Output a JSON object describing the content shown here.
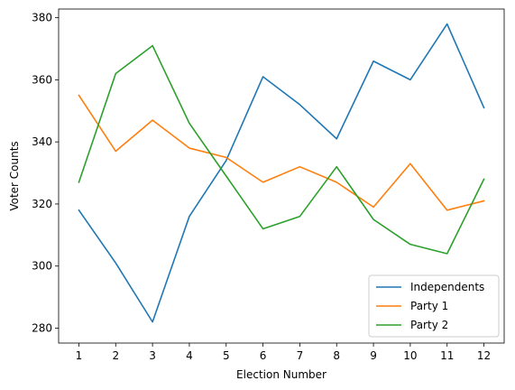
{
  "chart_data": {
    "type": "line",
    "xlabel": "Election Number",
    "ylabel": "Voter Counts",
    "x": [
      1,
      2,
      3,
      4,
      5,
      6,
      7,
      8,
      9,
      10,
      11,
      12
    ],
    "xticks": [
      "1",
      "2",
      "3",
      "4",
      "5",
      "6",
      "7",
      "8",
      "9",
      "10",
      "11",
      "12"
    ],
    "yticks": [
      280,
      300,
      320,
      340,
      360,
      380
    ],
    "xlim": [
      0.45,
      12.55
    ],
    "ylim": [
      275.2,
      382.8
    ],
    "grid": false,
    "legend_position": "lower right",
    "series": [
      {
        "name": "Independents",
        "color": "#1f77b4",
        "values": [
          318,
          301,
          282,
          316,
          334,
          361,
          352,
          341,
          366,
          360,
          378,
          351
        ]
      },
      {
        "name": "Party 1",
        "color": "#ff7f0e",
        "values": [
          355,
          337,
          347,
          338,
          335,
          327,
          332,
          327,
          319,
          333,
          318,
          321
        ]
      },
      {
        "name": "Party 2",
        "color": "#2ca02c",
        "values": [
          327,
          362,
          371,
          346,
          329,
          312,
          316,
          332,
          315,
          307,
          304,
          328
        ]
      }
    ]
  }
}
